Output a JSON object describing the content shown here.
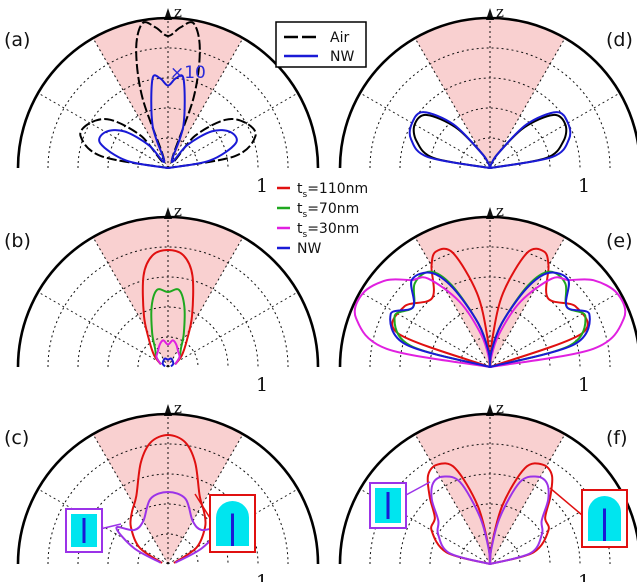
{
  "colors": {
    "air": "#000000",
    "nw": "#1a1ad6",
    "ts110": "#e01010",
    "ts70": "#1fa81f",
    "ts30": "#e020e0",
    "pink": "#f8c8c8",
    "cyan": "#00e5ef",
    "core": "#1a1ad6",
    "purple": "#9b33e8"
  },
  "axis_label": "z",
  "radial_max_label": "1",
  "legend_top": {
    "entries": [
      {
        "label": "Air",
        "color": "#000000",
        "dashed": true
      },
      {
        "label": "NW",
        "color": "#1a1ad6",
        "dashed": false
      }
    ]
  },
  "legend_mid": {
    "entries": [
      {
        "prefix": "t",
        "sub": "s",
        "suffix": "=110nm",
        "color": "#e01010"
      },
      {
        "prefix": "t",
        "sub": "s",
        "suffix": "=70nm",
        "color": "#1fa81f"
      },
      {
        "prefix": "t",
        "sub": "s",
        "suffix": "=30nm",
        "color": "#e020e0"
      },
      {
        "prefix": "",
        "sub": "",
        "suffix": "NW",
        "color": "#1a1ad6"
      }
    ]
  },
  "annotation_x10": "×10",
  "chart_data": [
    {
      "panel": "(a)",
      "type": "polar-line",
      "theta_range_deg": [
        -90,
        90
      ],
      "r_range": [
        0,
        1
      ],
      "theta_grid_deg": 30,
      "r_grid": 5,
      "highlight_cone_deg": 30,
      "series": [
        {
          "name": "Air",
          "color": "#000000",
          "theta_deg": [
            -90,
            -80,
            -70,
            -60,
            -50,
            -40,
            -30,
            -20,
            -15,
            -10,
            -5,
            0,
            5,
            10,
            15,
            20,
            30,
            40,
            50,
            60,
            70,
            80,
            90
          ],
          "r": [
            0.0,
            0.45,
            0.62,
            0.6,
            0.5,
            0.28,
            0.05,
            0.5,
            0.82,
            0.98,
            0.94,
            0.88,
            0.94,
            0.98,
            0.82,
            0.5,
            0.05,
            0.28,
            0.5,
            0.6,
            0.62,
            0.45,
            0.0
          ]
        },
        {
          "name": "NW",
          "color": "#1a1ad6",
          "theta_deg": [
            -90,
            -80,
            -70,
            -60,
            -50,
            -40,
            -30,
            -20,
            -10,
            -5,
            0,
            5,
            10,
            20,
            30,
            40,
            50,
            60,
            70,
            80,
            90
          ],
          "r": [
            0.0,
            0.28,
            0.48,
            0.48,
            0.38,
            0.2,
            0.05,
            0.3,
            0.6,
            0.6,
            0.55,
            0.6,
            0.6,
            0.3,
            0.05,
            0.2,
            0.38,
            0.48,
            0.48,
            0.28,
            0.0
          ]
        }
      ]
    },
    {
      "panel": "(b)",
      "type": "polar-line",
      "theta_range_deg": [
        -90,
        90
      ],
      "r_range": [
        0,
        1
      ],
      "theta_grid_deg": 30,
      "r_grid": 5,
      "highlight_cone_deg": 30,
      "series": [
        {
          "name": "ts=110nm",
          "color": "#e01010",
          "theta_deg": [
            -70,
            -50,
            -35,
            -25,
            -15,
            -8,
            0,
            8,
            15,
            25,
            35,
            50,
            70
          ],
          "r": [
            0.05,
            0.12,
            0.22,
            0.38,
            0.63,
            0.75,
            0.78,
            0.75,
            0.63,
            0.38,
            0.22,
            0.12,
            0.05
          ]
        },
        {
          "name": "ts=70nm",
          "color": "#1fa81f",
          "theta_deg": [
            -70,
            -50,
            -35,
            -25,
            -15,
            -8,
            0,
            8,
            15,
            25,
            35,
            50,
            70
          ],
          "r": [
            0.05,
            0.1,
            0.15,
            0.25,
            0.42,
            0.52,
            0.5,
            0.52,
            0.42,
            0.25,
            0.15,
            0.1,
            0.05
          ]
        },
        {
          "name": "ts=30nm",
          "color": "#e020e0",
          "theta_deg": [
            -70,
            -50,
            -35,
            -20,
            -10,
            0,
            10,
            20,
            35,
            50,
            70
          ],
          "r": [
            0.05,
            0.1,
            0.12,
            0.16,
            0.18,
            0.15,
            0.18,
            0.16,
            0.12,
            0.1,
            0.05
          ]
        },
        {
          "name": "NW",
          "color": "#1a1ad6",
          "theta_deg": [
            -80,
            -60,
            -40,
            -20,
            0,
            20,
            40,
            60,
            80
          ],
          "r": [
            0.02,
            0.04,
            0.05,
            0.06,
            0.05,
            0.06,
            0.05,
            0.04,
            0.02
          ]
        }
      ]
    },
    {
      "panel": "(c)",
      "type": "polar-line",
      "theta_range_deg": [
        -90,
        90
      ],
      "r_range": [
        0,
        1
      ],
      "theta_grid_deg": 30,
      "r_grid": 5,
      "highlight_cone_deg": 30,
      "series": [
        {
          "name": "red",
          "color": "#e01010",
          "theta_deg": [
            -80,
            -60,
            -45,
            -35,
            -25,
            -15,
            -8,
            0,
            8,
            15,
            25,
            35,
            45,
            60,
            80
          ],
          "r": [
            0.04,
            0.22,
            0.35,
            0.42,
            0.5,
            0.7,
            0.82,
            0.86,
            0.82,
            0.7,
            0.5,
            0.42,
            0.35,
            0.22,
            0.04
          ]
        },
        {
          "name": "purple",
          "color": "#9b33e8",
          "theta_deg": [
            -80,
            -65,
            -55,
            -45,
            -30,
            -15,
            0,
            15,
            30,
            45,
            55,
            65,
            80
          ],
          "r": [
            0.05,
            0.25,
            0.42,
            0.32,
            0.33,
            0.45,
            0.48,
            0.45,
            0.33,
            0.32,
            0.42,
            0.25,
            0.05
          ]
        }
      ]
    },
    {
      "panel": "(d)",
      "type": "polar-line",
      "theta_range_deg": [
        -90,
        90
      ],
      "r_range": [
        0,
        1
      ],
      "theta_grid_deg": 30,
      "r_grid": 5,
      "highlight_cone_deg": 30,
      "series": [
        {
          "name": "Air",
          "color": "#000000",
          "theta_deg": [
            -90,
            -80,
            -70,
            -60,
            -50,
            -40,
            -30,
            -20,
            -10,
            0,
            10,
            20,
            30,
            40,
            50,
            60,
            70,
            80,
            90
          ],
          "r": [
            0.0,
            0.38,
            0.52,
            0.58,
            0.55,
            0.35,
            0.12,
            0.04,
            0.01,
            0.0,
            0.01,
            0.04,
            0.12,
            0.35,
            0.55,
            0.58,
            0.52,
            0.38,
            0.0
          ]
        },
        {
          "name": "NW",
          "color": "#1a1ad6",
          "theta_deg": [
            -90,
            -80,
            -70,
            -60,
            -50,
            -40,
            -30,
            -20,
            -10,
            0,
            10,
            20,
            30,
            40,
            50,
            60,
            70,
            80,
            90
          ],
          "r": [
            0.0,
            0.42,
            0.56,
            0.6,
            0.58,
            0.38,
            0.12,
            0.04,
            0.01,
            0.0,
            0.01,
            0.04,
            0.12,
            0.38,
            0.58,
            0.6,
            0.56,
            0.42,
            0.0
          ]
        }
      ]
    },
    {
      "panel": "(e)",
      "type": "polar-line",
      "theta_range_deg": [
        -90,
        90
      ],
      "r_range": [
        0,
        1
      ],
      "theta_grid_deg": 30,
      "r_grid": 5,
      "highlight_cone_deg": 30,
      "series": [
        {
          "name": "ts=110nm",
          "color": "#e01010",
          "theta_deg": [
            -90,
            -70,
            -55,
            -40,
            -30,
            -25,
            -18,
            -10,
            -5,
            0,
            5,
            10,
            18,
            25,
            30,
            40,
            55,
            70,
            90
          ],
          "r": [
            0.0,
            0.65,
            0.7,
            0.6,
            0.78,
            0.85,
            0.8,
            0.5,
            0.2,
            0.0,
            0.2,
            0.5,
            0.8,
            0.85,
            0.78,
            0.6,
            0.7,
            0.65,
            0.0
          ]
        },
        {
          "name": "ts=70nm",
          "color": "#1fa81f",
          "theta_deg": [
            -90,
            -75,
            -62,
            -52,
            -42,
            -32,
            -25,
            -15,
            -5,
            0,
            5,
            15,
            25,
            32,
            42,
            52,
            62,
            75,
            90
          ],
          "r": [
            0.0,
            0.55,
            0.72,
            0.65,
            0.75,
            0.75,
            0.6,
            0.3,
            0.1,
            0.0,
            0.1,
            0.3,
            0.6,
            0.75,
            0.75,
            0.65,
            0.72,
            0.55,
            0.0
          ]
        },
        {
          "name": "ts=30nm",
          "color": "#e020e0",
          "theta_deg": [
            -90,
            -80,
            -70,
            -60,
            -50,
            -42,
            -35,
            -25,
            -15,
            -5,
            0,
            5,
            15,
            25,
            35,
            42,
            50,
            60,
            70,
            80,
            90
          ],
          "r": [
            0.0,
            0.7,
            0.95,
            0.98,
            0.9,
            0.78,
            0.72,
            0.48,
            0.22,
            0.05,
            0.0,
            0.05,
            0.22,
            0.48,
            0.72,
            0.78,
            0.9,
            0.98,
            0.95,
            0.7,
            0.0
          ]
        },
        {
          "name": "NW",
          "color": "#1a1ad6",
          "theta_deg": [
            -90,
            -75,
            -62,
            -52,
            -42,
            -32,
            -25,
            -15,
            -5,
            0,
            5,
            15,
            25,
            32,
            42,
            52,
            62,
            75,
            90
          ],
          "r": [
            0.0,
            0.58,
            0.75,
            0.65,
            0.78,
            0.74,
            0.58,
            0.3,
            0.1,
            0.0,
            0.1,
            0.3,
            0.58,
            0.74,
            0.78,
            0.65,
            0.75,
            0.58,
            0.0
          ]
        }
      ]
    },
    {
      "panel": "(f)",
      "type": "polar-line",
      "theta_range_deg": [
        -90,
        90
      ],
      "r_range": [
        0,
        1
      ],
      "theta_grid_deg": 30,
      "r_grid": 5,
      "highlight_cone_deg": 30,
      "series": [
        {
          "name": "red",
          "color": "#e01010",
          "theta_deg": [
            -90,
            -75,
            -60,
            -50,
            -42,
            -35,
            -28,
            -20,
            -12,
            -5,
            0,
            5,
            12,
            20,
            28,
            35,
            42,
            50,
            60,
            75,
            90
          ],
          "r": [
            0.0,
            0.3,
            0.45,
            0.48,
            0.6,
            0.72,
            0.75,
            0.68,
            0.4,
            0.12,
            0.0,
            0.12,
            0.4,
            0.68,
            0.75,
            0.72,
            0.6,
            0.48,
            0.45,
            0.3,
            0.0
          ]
        },
        {
          "name": "purple",
          "color": "#9b33e8",
          "theta_deg": [
            -90,
            -75,
            -60,
            -50,
            -42,
            -35,
            -28,
            -20,
            -12,
            -5,
            0,
            5,
            12,
            20,
            28,
            35,
            42,
            50,
            60,
            75,
            90
          ],
          "r": [
            0.0,
            0.28,
            0.4,
            0.45,
            0.58,
            0.66,
            0.66,
            0.58,
            0.32,
            0.1,
            0.0,
            0.1,
            0.32,
            0.58,
            0.66,
            0.66,
            0.58,
            0.45,
            0.4,
            0.28,
            0.0
          ]
        }
      ]
    }
  ],
  "panels": [
    {
      "label": "(a)"
    },
    {
      "label": "(b)"
    },
    {
      "label": "(c)"
    },
    {
      "label": "(d)"
    },
    {
      "label": "(e)"
    },
    {
      "label": "(f)"
    }
  ]
}
